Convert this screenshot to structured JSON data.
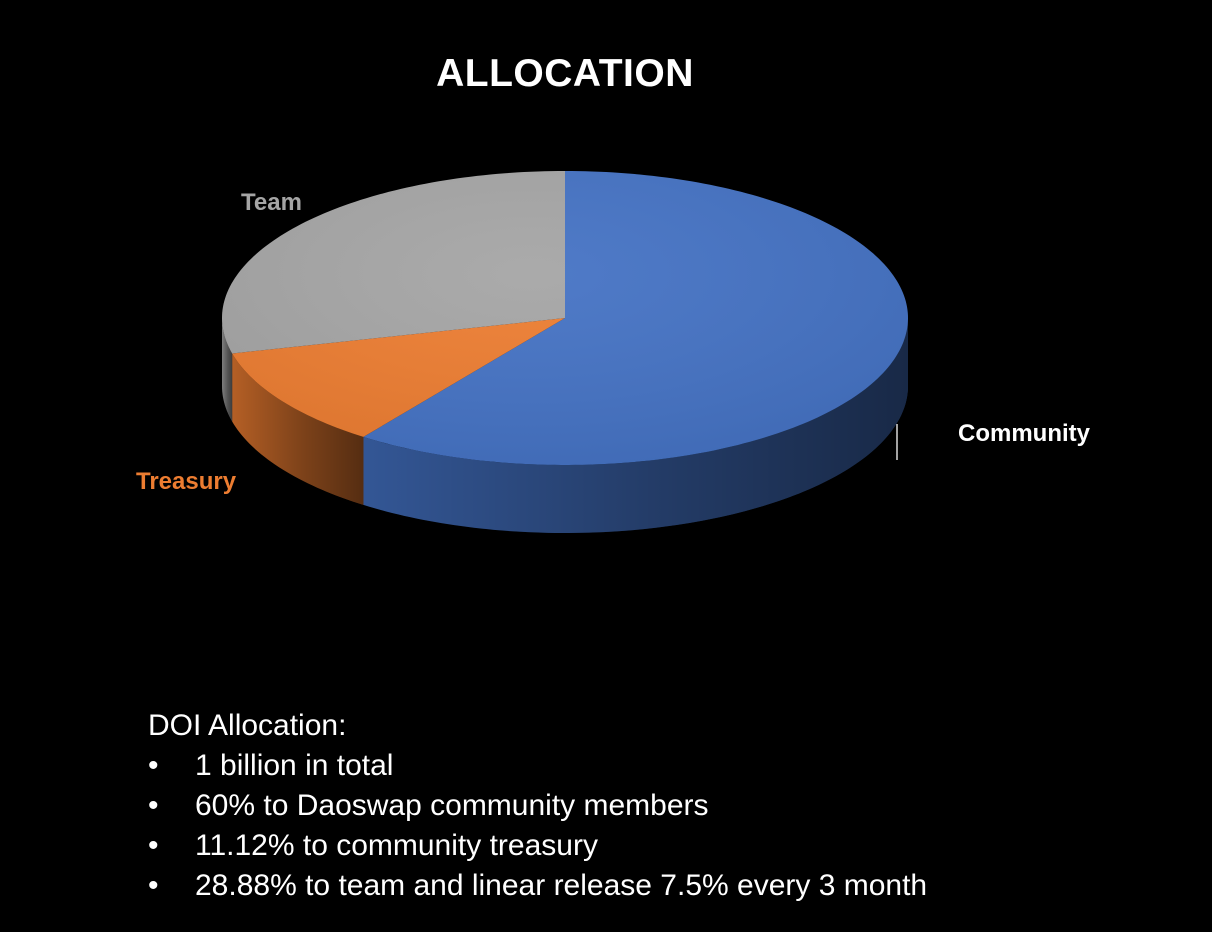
{
  "chart_data": {
    "type": "pie",
    "title": "ALLOCATION",
    "slices": [
      {
        "label": "Community",
        "value": 60,
        "color": "#4472C4",
        "label_color": "#FFFFFF"
      },
      {
        "label": "Treasury",
        "value": 11.12,
        "color": "#ED7D31",
        "label_color": "#ED7D31"
      },
      {
        "label": "Team",
        "value": 28.88,
        "color": "#A5A5A5",
        "label_color": "#A5A5A5"
      }
    ],
    "style": "3d"
  },
  "notes": {
    "heading": "DOI Allocation:",
    "bullet": "•",
    "items": [
      "1 billion in total",
      "60% to Daoswap community members",
      "11.12% to community treasury",
      "28.88% to team and linear release 7.5% every 3 month"
    ]
  },
  "colors": {
    "background": "#000000",
    "text": "#FFFFFF"
  }
}
